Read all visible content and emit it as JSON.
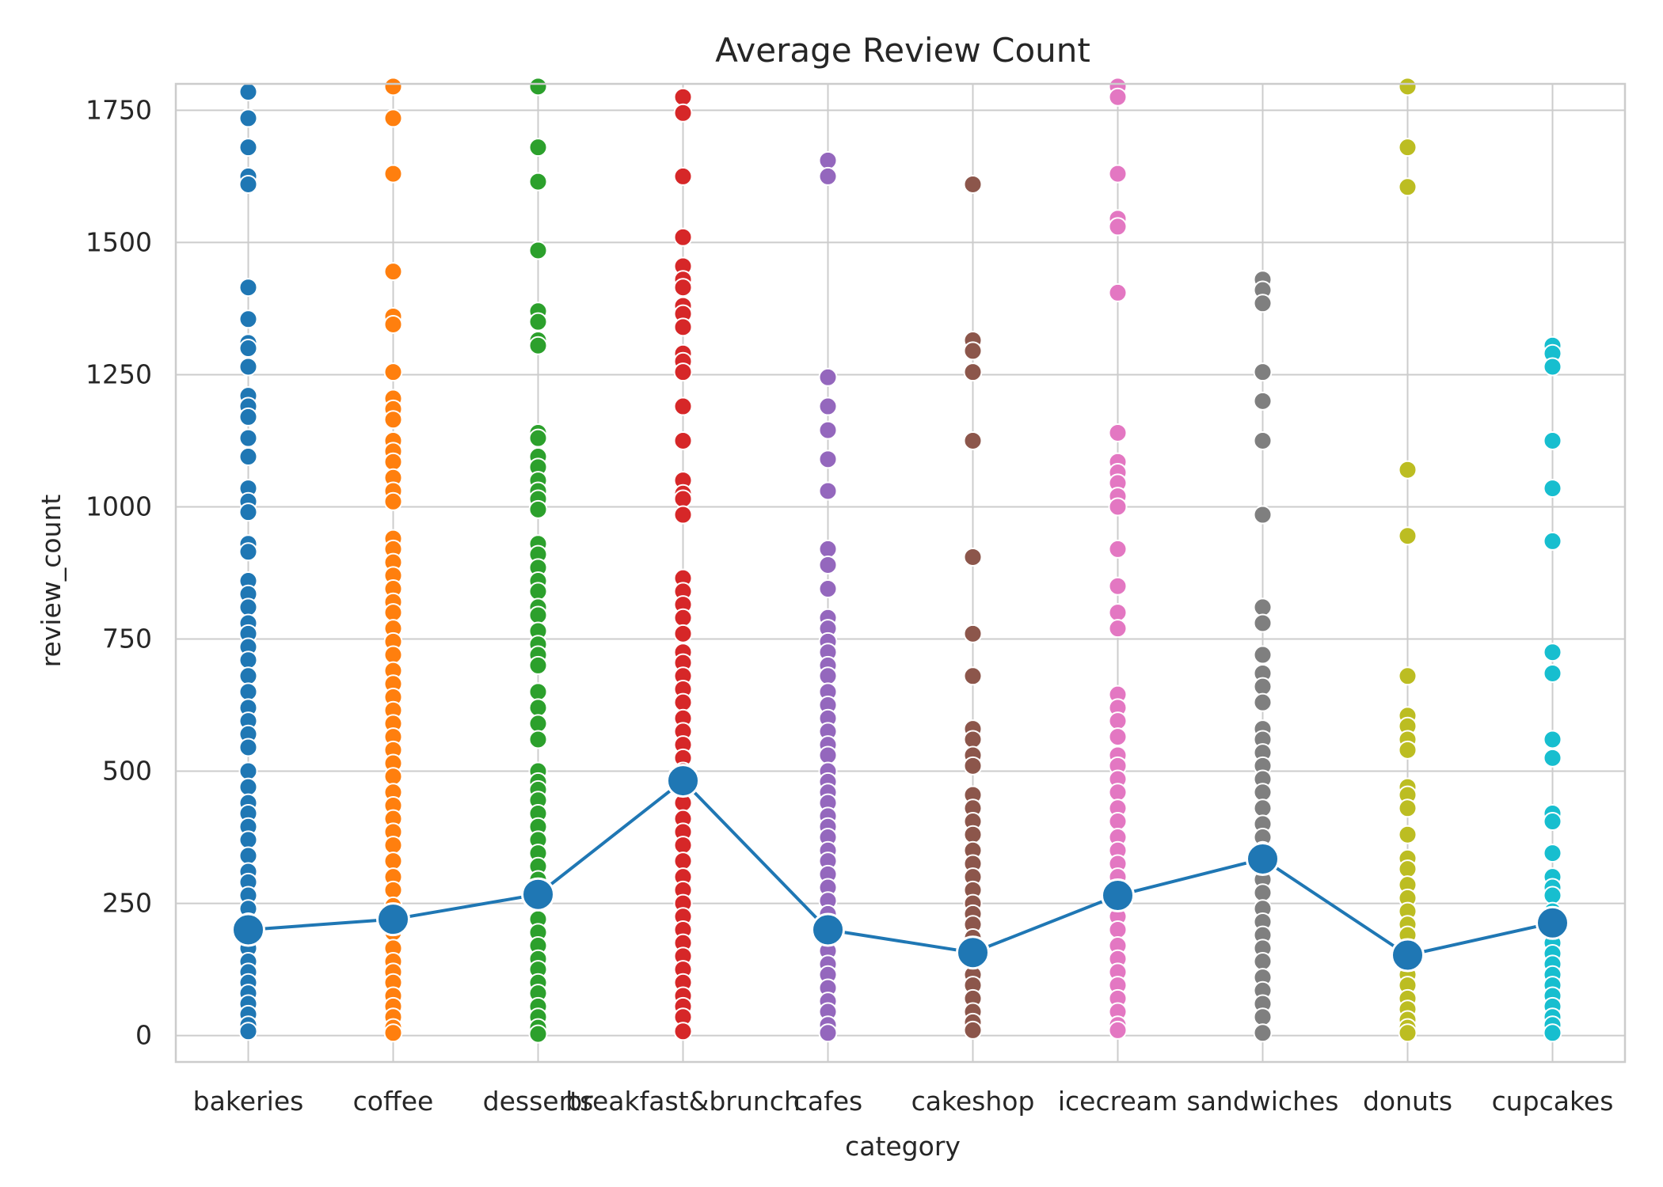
{
  "chart_data": {
    "type": "scatter",
    "title": "Average Review Count",
    "xlabel": "category",
    "ylabel": "review_count",
    "categories": [
      "bakeries",
      "coffee",
      "desserts",
      "breakfast&brunch",
      "cafes",
      "cakeshop",
      "icecream",
      "sandwiches",
      "donuts",
      "cupcakes"
    ],
    "colors": [
      "#1f77b4",
      "#ff7f0e",
      "#2ca02c",
      "#d62728",
      "#9467bd",
      "#8c564b",
      "#e377c2",
      "#7f7f7f",
      "#bcbd22",
      "#17becf"
    ],
    "ylim": [
      -50,
      1800
    ],
    "yticks": [
      0,
      250,
      500,
      750,
      1000,
      1250,
      1500,
      1750
    ],
    "grid": true,
    "points": [
      [
        1785,
        1735,
        1680,
        1625,
        1610,
        1415,
        1355,
        1310,
        1300,
        1265,
        1210,
        1190,
        1170,
        1130,
        1095,
        1035,
        1010,
        990,
        930,
        915,
        860,
        835,
        810,
        780,
        760,
        735,
        710,
        680,
        650,
        620,
        595,
        570,
        545,
        500,
        470,
        440,
        420,
        395,
        370,
        340,
        310,
        290,
        265,
        240,
        215,
        190,
        165,
        140,
        120,
        100,
        80,
        60,
        40,
        20,
        8
      ],
      [
        1795,
        1735,
        1630,
        1445,
        1360,
        1345,
        1255,
        1205,
        1185,
        1165,
        1125,
        1105,
        1085,
        1055,
        1030,
        1010,
        940,
        920,
        895,
        870,
        845,
        820,
        800,
        770,
        745,
        720,
        690,
        665,
        640,
        615,
        590,
        565,
        540,
        515,
        490,
        460,
        435,
        410,
        385,
        360,
        330,
        300,
        275,
        245,
        220,
        195,
        165,
        140,
        120,
        100,
        75,
        55,
        35,
        15,
        5
      ],
      [
        1795,
        1680,
        1615,
        1485,
        1370,
        1350,
        1315,
        1305,
        1140,
        1130,
        1095,
        1075,
        1050,
        1030,
        1015,
        995,
        930,
        910,
        885,
        860,
        840,
        810,
        795,
        765,
        740,
        720,
        700,
        650,
        620,
        590,
        560,
        500,
        480,
        465,
        445,
        420,
        395,
        370,
        345,
        320,
        295,
        270,
        250,
        220,
        195,
        170,
        145,
        125,
        100,
        80,
        55,
        35,
        15,
        3
      ],
      [
        1775,
        1745,
        1625,
        1510,
        1455,
        1430,
        1415,
        1380,
        1365,
        1340,
        1290,
        1275,
        1255,
        1190,
        1125,
        1050,
        1025,
        1015,
        985,
        865,
        840,
        815,
        790,
        760,
        725,
        705,
        680,
        655,
        630,
        600,
        575,
        550,
        525,
        500,
        470,
        440,
        410,
        385,
        360,
        330,
        300,
        275,
        250,
        225,
        200,
        175,
        150,
        125,
        100,
        75,
        55,
        35,
        8
      ],
      [
        1655,
        1625,
        1245,
        1190,
        1145,
        1090,
        1030,
        920,
        890,
        845,
        790,
        770,
        745,
        725,
        700,
        680,
        650,
        625,
        600,
        575,
        550,
        530,
        500,
        480,
        460,
        440,
        415,
        395,
        375,
        350,
        330,
        305,
        280,
        255,
        230,
        205,
        185,
        160,
        135,
        115,
        90,
        65,
        45,
        20,
        5
      ],
      [
        1610,
        1315,
        1295,
        1255,
        1125,
        905,
        760,
        680,
        580,
        560,
        530,
        510,
        455,
        430,
        405,
        380,
        350,
        325,
        300,
        275,
        250,
        230,
        210,
        185,
        165,
        140,
        115,
        95,
        70,
        45,
        25,
        10
      ],
      [
        1795,
        1775,
        1630,
        1545,
        1530,
        1405,
        1140,
        1085,
        1065,
        1045,
        1020,
        1000,
        920,
        850,
        800,
        770,
        645,
        620,
        595,
        565,
        530,
        510,
        485,
        460,
        430,
        405,
        375,
        350,
        325,
        300,
        275,
        250,
        225,
        200,
        170,
        145,
        120,
        95,
        70,
        45,
        20,
        10
      ],
      [
        1430,
        1410,
        1385,
        1255,
        1200,
        1125,
        985,
        810,
        780,
        720,
        685,
        660,
        630,
        580,
        560,
        535,
        510,
        485,
        460,
        430,
        400,
        375,
        350,
        325,
        295,
        270,
        240,
        215,
        190,
        165,
        140,
        110,
        85,
        60,
        35,
        5
      ],
      [
        1795,
        1680,
        1605,
        1070,
        945,
        680,
        605,
        585,
        560,
        540,
        470,
        455,
        430,
        380,
        335,
        315,
        285,
        260,
        235,
        210,
        190,
        165,
        140,
        115,
        95,
        70,
        50,
        30,
        15,
        5
      ],
      [
        1305,
        1290,
        1265,
        1125,
        1035,
        935,
        725,
        685,
        560,
        525,
        420,
        405,
        345,
        300,
        280,
        265,
        235,
        215,
        195,
        175,
        155,
        135,
        115,
        95,
        75,
        55,
        35,
        20,
        5
      ]
    ],
    "means": [
      200,
      220,
      267,
      482,
      200,
      157,
      265,
      334,
      152,
      213
    ]
  }
}
